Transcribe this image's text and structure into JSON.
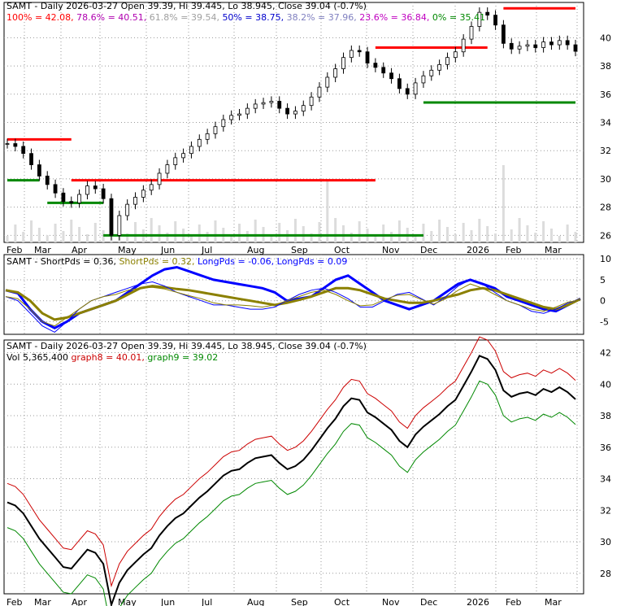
{
  "chart_data": [
    {
      "type": "candlestick",
      "panel": "price",
      "header_text": "SAMT - Daily 2026-03-27 Open 39.39, Hi 39.445, Lo 38.945, Close 39.04 (-0.7%)",
      "fib_levels": [
        {
          "label": "100%",
          "value": 42.08,
          "color": "#ff0000"
        },
        {
          "label": "78.6%",
          "value": 40.51,
          "color": "#b000b0"
        },
        {
          "label": "61.8%",
          "value": 39.54,
          "color": "#a0a0a0"
        },
        {
          "label": "50%",
          "value": 38.75,
          "color": "#0000cc"
        },
        {
          "label": "38.2%",
          "value": 37.96,
          "color": "#8080c0"
        },
        {
          "label": "23.6%",
          "value": 36.84,
          "color": "#c000c0"
        },
        {
          "label": "0%",
          "value": 35.41,
          "color": "#008800"
        }
      ],
      "months": [
        "Feb",
        "Mar",
        "Apr",
        "May",
        "Jun",
        "Jul",
        "Aug",
        "Sep",
        "Oct",
        "Nov",
        "Dec",
        "2026",
        "Feb",
        "Mar"
      ],
      "y_ticks": [
        26,
        28,
        30,
        32,
        34,
        36,
        38,
        40
      ],
      "ylim": [
        25.5,
        42.5
      ],
      "close_series": [
        32.5,
        32.3,
        31.8,
        31.0,
        30.2,
        29.6,
        29.0,
        28.4,
        28.3,
        28.9,
        29.5,
        29.3,
        28.6,
        26.0,
        27.4,
        28.2,
        28.7,
        29.2,
        29.6,
        30.4,
        31.0,
        31.5,
        31.8,
        32.3,
        32.8,
        33.2,
        33.7,
        34.2,
        34.5,
        34.6,
        35.0,
        35.3,
        35.4,
        35.5,
        35.0,
        34.6,
        34.8,
        35.2,
        35.8,
        36.5,
        37.2,
        37.8,
        38.6,
        39.1,
        39.0,
        38.2,
        37.9,
        37.5,
        37.1,
        36.4,
        36.0,
        36.8,
        37.3,
        37.7,
        38.1,
        38.6,
        39.0,
        39.9,
        40.8,
        41.8,
        41.6,
        40.9,
        39.6,
        39.2,
        39.4,
        39.5,
        39.3,
        39.7,
        39.5,
        39.8,
        39.5,
        39.04
      ],
      "lows": [
        {
          "value": 28.25,
          "from_index": 0,
          "to_index": 8
        }
      ],
      "support_resistance": [
        {
          "level": 32.8,
          "color": "#ff0000",
          "from_index": 0,
          "to_index": 8
        },
        {
          "level": 29.9,
          "color": "#ff0000",
          "from_index": 8,
          "to_index": 46
        },
        {
          "level": 29.9,
          "color": "#008800",
          "from_index": 0,
          "to_index": 4
        },
        {
          "level": 28.3,
          "color": "#008800",
          "from_index": 5,
          "to_index": 12
        },
        {
          "level": 26.0,
          "color": "#008800",
          "from_index": 12,
          "to_index": 52
        },
        {
          "level": 39.3,
          "color": "#ff0000",
          "from_index": 46,
          "to_index": 60
        },
        {
          "level": 35.41,
          "color": "#008800",
          "from_index": 52,
          "to_index": 76
        },
        {
          "level": 42.08,
          "color": "#ff0000",
          "from_index": 62,
          "to_index": 76
        }
      ]
    },
    {
      "type": "line",
      "panel": "oscillator",
      "header": {
        "symbol": "SAMT",
        "items": [
          {
            "label": "ShortPds",
            "value": "0.36",
            "color": "#000000"
          },
          {
            "label": "ShortPds",
            "value": "0.32",
            "color": "#8b8000"
          },
          {
            "label": "LongPds",
            "value": "-0.06",
            "color": "#0000ff"
          },
          {
            "label": "LongPds",
            "value": "0.09",
            "color": "#0000ff"
          }
        ]
      },
      "y_ticks": [
        10,
        5,
        0,
        -5
      ],
      "ylim": [
        -8,
        11
      ],
      "series": [
        {
          "values": [
            2.5,
            1.8,
            -2,
            -5,
            -6.5,
            -5,
            -3,
            -2,
            -1,
            0,
            2,
            4,
            6,
            7.5,
            8,
            7,
            6,
            5,
            4.5,
            4,
            3.5,
            3,
            2,
            0,
            0.5,
            1,
            3,
            5,
            6,
            4,
            2,
            0,
            -1,
            -2,
            -1,
            0,
            2,
            4,
            5,
            4,
            3,
            1,
            0,
            -1,
            -2,
            -2.5,
            -1,
            0.5
          ],
          "color": "#0000ff",
          "width": 3
        },
        {
          "values": [
            2.5,
            2,
            0,
            -3,
            -4.5,
            -4,
            -3,
            -2,
            -1,
            0,
            1.5,
            3,
            3.5,
            3.2,
            2.8,
            2.5,
            2,
            1.5,
            1,
            0.5,
            0,
            -0.5,
            -1,
            -0.5,
            0.2,
            1,
            2,
            3,
            3,
            2.5,
            1.5,
            0.5,
            0,
            -0.5,
            -0.5,
            0,
            0.8,
            1.5,
            2.5,
            3,
            2.5,
            1.5,
            0.5,
            -0.5,
            -1.5,
            -2,
            -1,
            0.4
          ],
          "color": "#8b8000",
          "width": 3
        },
        {
          "values": [
            1,
            0,
            -3,
            -6,
            -7.5,
            -5,
            -2,
            0,
            1,
            2,
            3,
            4,
            4.5,
            3.5,
            2,
            1,
            0,
            -1,
            -1,
            -1.5,
            -2,
            -2,
            -1.5,
            0,
            1.5,
            2.5,
            3,
            2,
            0.5,
            -1.5,
            -1.5,
            0,
            1.5,
            2,
            0.5,
            -1,
            1,
            3.5,
            5,
            4,
            2,
            0,
            -1,
            -2.5,
            -3,
            -2,
            -0.5,
            0.3
          ],
          "color": "#0000ff",
          "width": 1
        },
        {
          "values": [
            1,
            0.5,
            -2,
            -5,
            -6,
            -4,
            -2,
            0,
            1,
            1.5,
            2.5,
            3,
            3.2,
            2.8,
            2,
            1.2,
            0.5,
            -0.5,
            -1,
            -1,
            -1.2,
            -1.5,
            -1,
            0,
            1,
            2,
            2.5,
            1.5,
            0,
            -1.2,
            -1,
            0.3,
            1.3,
            1.5,
            0.3,
            -0.8,
            0.5,
            2.5,
            4,
            3,
            1.5,
            0,
            -1,
            -2,
            -2.5,
            -1.5,
            -0.3,
            0.2
          ],
          "color": "#8b8000",
          "width": 1
        }
      ]
    },
    {
      "type": "line",
      "panel": "trailing-stop",
      "header_line1": "SAMT - Daily 2026-03-27 Open 39.39, Hi 39.445, Lo 38.945, Close 39.04 (-0.7%)",
      "header_line2": {
        "items": [
          {
            "text": "Vol 5,365,400",
            "color": "#000000"
          },
          {
            "text": "graph8 = 40.01,",
            "color": "#cc0000"
          },
          {
            "text": "graph9 = 39.02",
            "color": "#008800"
          }
        ]
      },
      "y_ticks": [
        42,
        40,
        38,
        36,
        34,
        32,
        30,
        28
      ],
      "ylim": [
        26.7,
        42.8
      ],
      "months": [
        "Feb",
        "Mar",
        "Apr",
        "May",
        "Jun",
        "Jul",
        "Aug",
        "Sep",
        "Oct",
        "Nov",
        "Dec",
        "2026",
        "Feb",
        "Mar"
      ]
    }
  ]
}
